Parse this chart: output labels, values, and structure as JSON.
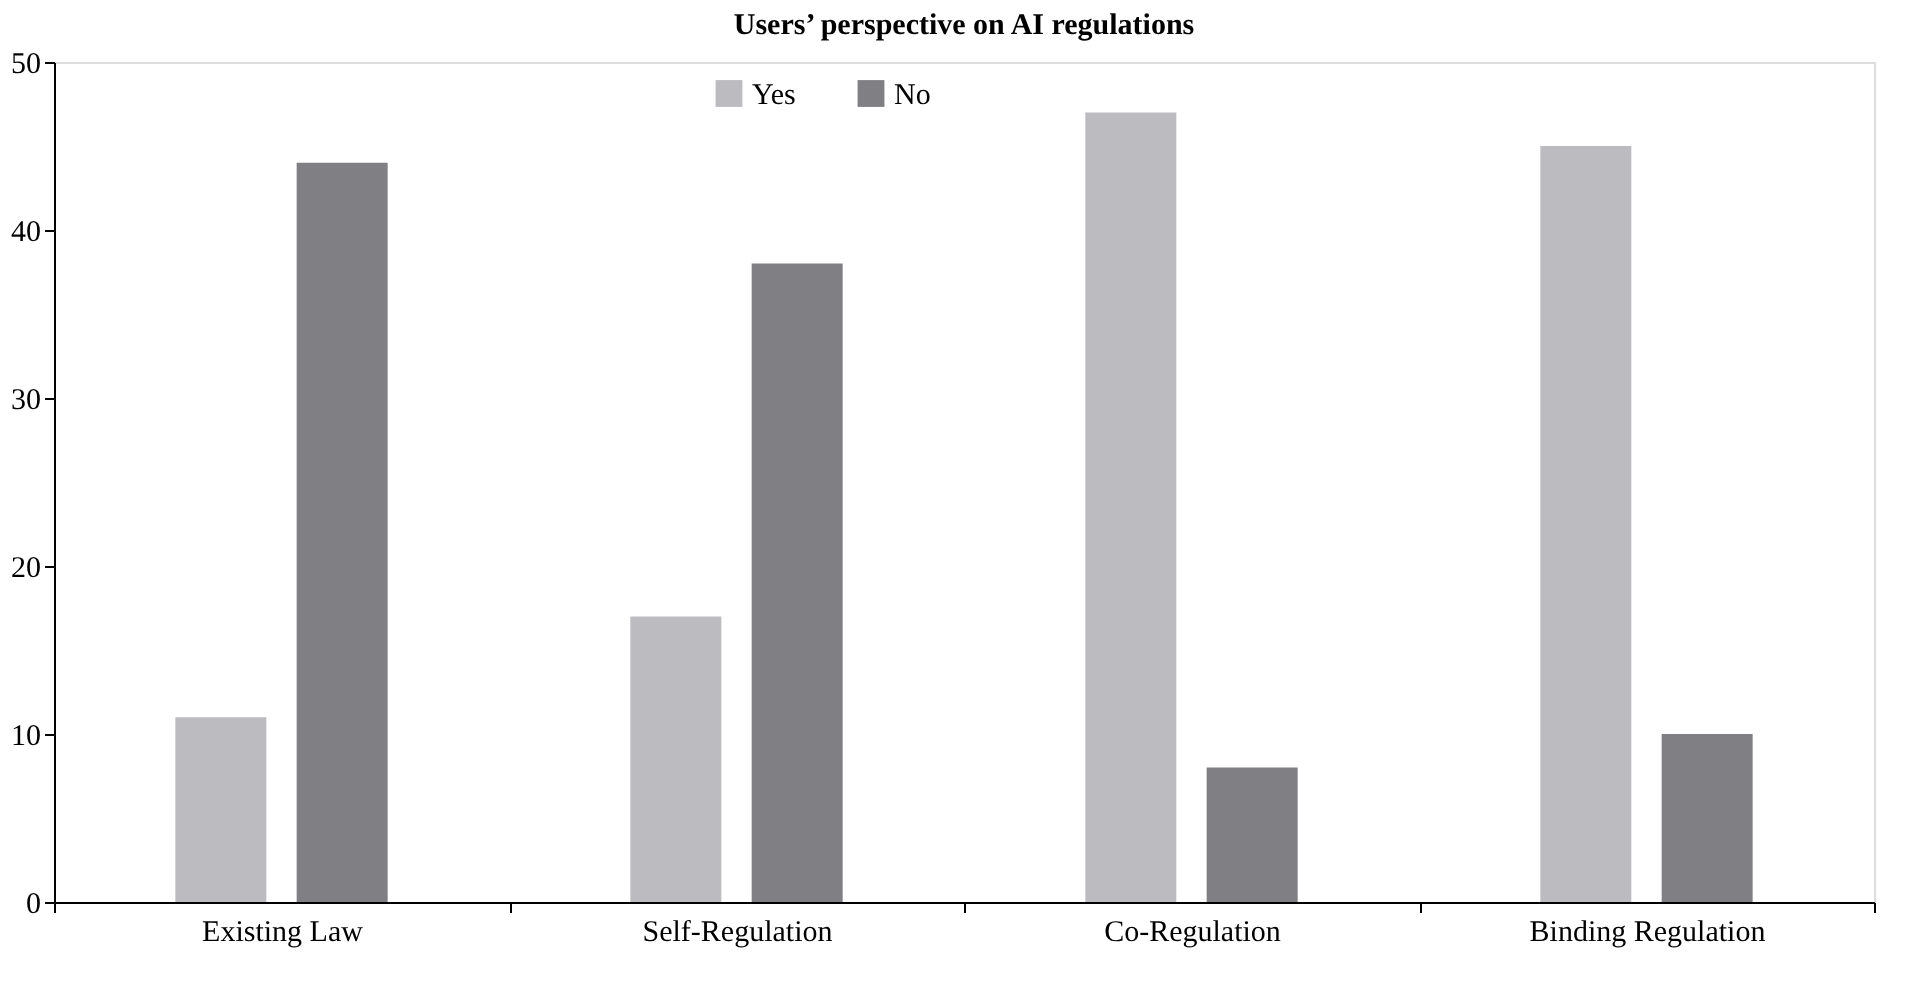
{
  "chart_data": {
    "type": "bar",
    "title": "Users’ perspective on AI regulations",
    "categories": [
      "Existing Law",
      "Self-Regulation",
      "Co-Regulation",
      "Binding Regulation"
    ],
    "series": [
      {
        "name": "Yes",
        "color": "#bcbcc0",
        "values": [
          11,
          17,
          47,
          45
        ]
      },
      {
        "name": "No",
        "color": "#808084",
        "values": [
          44,
          38,
          8,
          10
        ]
      }
    ],
    "ylim": [
      0,
      50
    ],
    "yticks": [
      0,
      10,
      20,
      30,
      40,
      50
    ],
    "grid": false,
    "legend": "top"
  }
}
